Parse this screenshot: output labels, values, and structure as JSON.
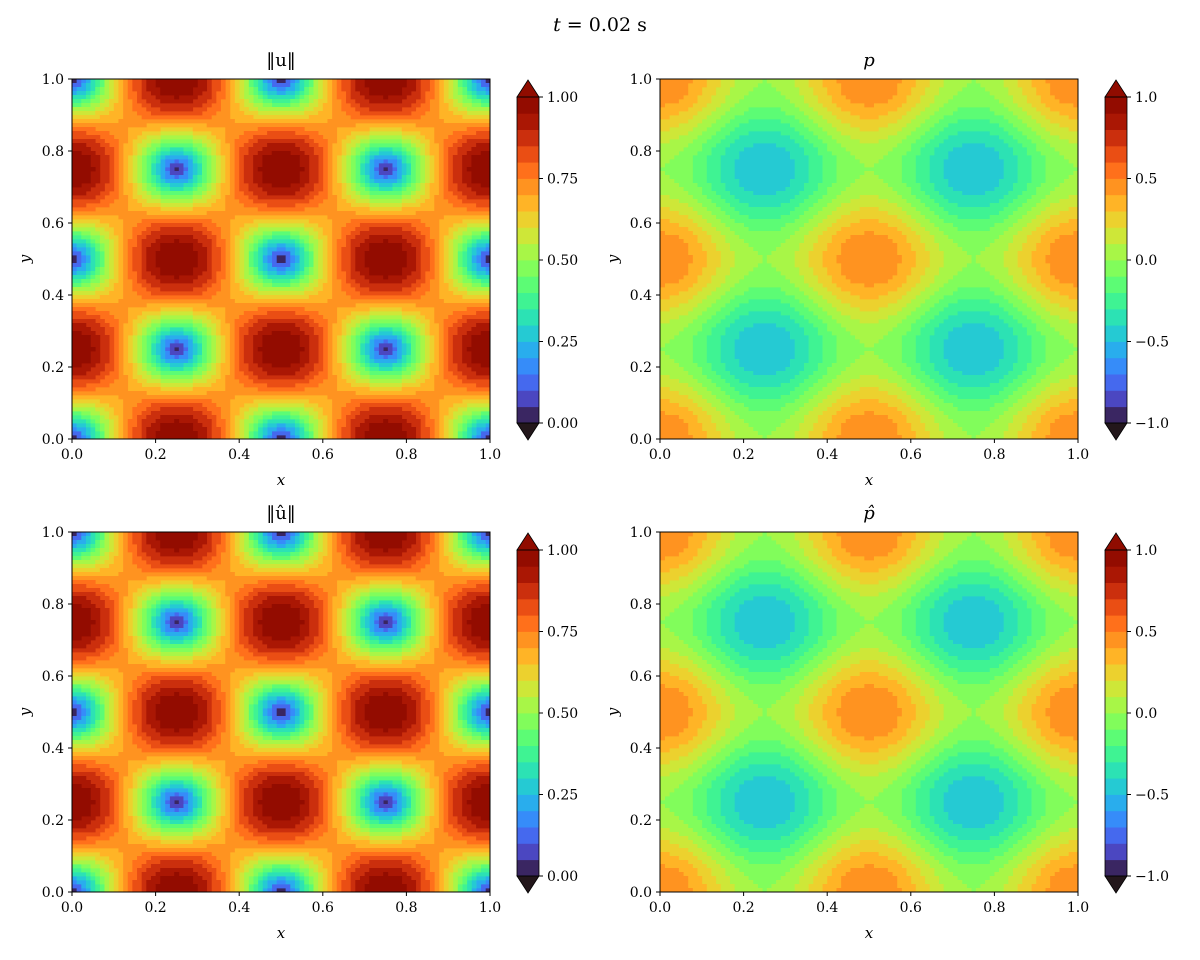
{
  "figure": {
    "suptitle_var": "t",
    "suptitle_rest": " = 0.02 s"
  },
  "chart_data": [
    {
      "type": "heatmap",
      "title_text": "‖u‖",
      "field": "velocity_magnitude",
      "xlabel": "x",
      "ylabel": "y",
      "xlim": [
        0.0,
        1.0
      ],
      "ylim": [
        0.0,
        1.0
      ],
      "xticks": [
        "0.0",
        "0.2",
        "0.4",
        "0.6",
        "0.8",
        "1.0"
      ],
      "yticks": [
        "0.0",
        "0.2",
        "0.4",
        "0.6",
        "0.8",
        "1.0"
      ],
      "colorbar": {
        "min": 0.0,
        "max": 1.0,
        "levels": 20,
        "extend": "both",
        "ticks": [
          "0.00",
          "0.25",
          "0.50",
          "0.75",
          "1.00"
        ]
      },
      "colormap": "turbo"
    },
    {
      "type": "heatmap",
      "title_text": "p",
      "field": "pressure",
      "xlabel": "x",
      "ylabel": "y",
      "xlim": [
        0.0,
        1.0
      ],
      "ylim": [
        0.0,
        1.0
      ],
      "xticks": [
        "0.0",
        "0.2",
        "0.4",
        "0.6",
        "0.8",
        "1.0"
      ],
      "yticks": [
        "0.0",
        "0.2",
        "0.4",
        "0.6",
        "0.8",
        "1.0"
      ],
      "colorbar": {
        "min": -1.0,
        "max": 1.0,
        "levels": 20,
        "extend": "both",
        "ticks": [
          "−1.0",
          "−0.5",
          "0.0",
          "0.5",
          "1.0"
        ]
      },
      "colormap": "turbo"
    },
    {
      "type": "heatmap",
      "title_text": "‖û‖",
      "field": "velocity_magnitude",
      "xlabel": "x",
      "ylabel": "y",
      "xlim": [
        0.0,
        1.0
      ],
      "ylim": [
        0.0,
        1.0
      ],
      "xticks": [
        "0.0",
        "0.2",
        "0.4",
        "0.6",
        "0.8",
        "1.0"
      ],
      "yticks": [
        "0.0",
        "0.2",
        "0.4",
        "0.6",
        "0.8",
        "1.0"
      ],
      "colorbar": {
        "min": 0.0,
        "max": 1.0,
        "levels": 20,
        "extend": "both",
        "ticks": [
          "0.00",
          "0.25",
          "0.50",
          "0.75",
          "1.00"
        ]
      },
      "colormap": "turbo"
    },
    {
      "type": "heatmap",
      "title_text": "p̂",
      "field": "pressure",
      "xlabel": "x",
      "ylabel": "y",
      "xlim": [
        0.0,
        1.0
      ],
      "ylim": [
        0.0,
        1.0
      ],
      "xticks": [
        "0.0",
        "0.2",
        "0.4",
        "0.6",
        "0.8",
        "1.0"
      ],
      "yticks": [
        "0.0",
        "0.2",
        "0.4",
        "0.6",
        "0.8",
        "1.0"
      ],
      "colorbar": {
        "min": -1.0,
        "max": 1.0,
        "levels": 20,
        "extend": "both",
        "ticks": [
          "−1.0",
          "−0.5",
          "0.0",
          "0.5",
          "1.0"
        ]
      },
      "colormap": "turbo"
    }
  ]
}
